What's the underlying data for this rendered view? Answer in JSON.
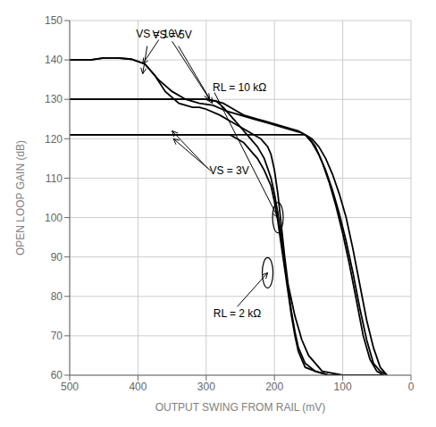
{
  "chart_data": {
    "type": "line",
    "xlabel": "OUTPUT SWING FROM RAIL (mV)",
    "ylabel": "OPEN LOOP GAIN (dB)",
    "xlim": [
      500,
      0
    ],
    "ylim": [
      60,
      150
    ],
    "xticks": [
      500,
      400,
      300,
      200,
      100,
      0
    ],
    "yticks": [
      60,
      70,
      80,
      90,
      100,
      110,
      120,
      130,
      140,
      150
    ],
    "grid": true,
    "color": "#000000",
    "series": [
      {
        "x": [
          500,
          470,
          450,
          430,
          410,
          390,
          370,
          350,
          330,
          310,
          290,
          270,
          250,
          230,
          210,
          190,
          170,
          160,
          155,
          150,
          140,
          130,
          120,
          110,
          100,
          90,
          80,
          70,
          60,
          50,
          40
        ],
        "values": [
          140,
          140,
          140.5,
          140.5,
          140.2,
          139,
          135,
          132,
          130,
          129,
          128.5,
          127,
          126,
          125,
          124,
          123,
          122,
          121.5,
          121,
          120.5,
          118,
          114,
          109,
          103,
          96,
          88,
          79,
          70,
          64,
          61,
          60
        ]
      },
      {
        "x": [
          500,
          470,
          450,
          430,
          410,
          390,
          375,
          360,
          340,
          320,
          310,
          300,
          280,
          260,
          240,
          230,
          220,
          210,
          205,
          200,
          195,
          190,
          185,
          180,
          170,
          160,
          150,
          130,
          100,
          70,
          40
        ],
        "values": [
          140,
          140,
          140.5,
          140.5,
          140.2,
          139,
          136,
          132,
          129,
          128,
          128,
          127.5,
          126,
          124,
          122,
          121,
          120,
          118,
          116,
          112,
          106,
          98,
          90,
          83,
          75,
          69,
          65,
          61,
          60,
          60,
          60
        ]
      },
      {
        "x": [
          500,
          480,
          460,
          440,
          420,
          400,
          380,
          360,
          340,
          320,
          300,
          285,
          275,
          265,
          255,
          245,
          235,
          225,
          215,
          205,
          195,
          185,
          175,
          165,
          155,
          145,
          135,
          125,
          115,
          105,
          95,
          85,
          75,
          65,
          55,
          45,
          35
        ],
        "values": [
          130,
          130,
          130,
          130,
          130,
          130,
          130,
          130,
          130,
          130,
          130,
          129.5,
          129,
          128,
          127,
          126,
          125.5,
          125,
          124.5,
          124,
          123.5,
          123,
          122.5,
          122,
          121,
          119,
          116,
          112,
          107,
          101,
          94,
          86,
          77,
          69,
          63,
          61,
          60
        ]
      },
      {
        "x": [
          500,
          480,
          460,
          440,
          420,
          400,
          380,
          360,
          340,
          320,
          300,
          285,
          275,
          265,
          255,
          245,
          235,
          225,
          215,
          205,
          200,
          195,
          190,
          185,
          180,
          175,
          170,
          165,
          155,
          140,
          120,
          90,
          60
        ],
        "values": [
          130,
          130,
          130,
          130,
          130,
          130,
          130,
          130,
          130,
          130,
          130,
          129.5,
          128,
          126,
          124,
          122,
          120,
          118,
          115,
          110,
          106,
          101,
          95,
          88,
          82,
          76,
          71,
          67,
          63,
          61,
          60,
          60,
          60
        ]
      },
      {
        "x": [
          500,
          480,
          460,
          440,
          420,
          400,
          380,
          360,
          340,
          320,
          300,
          280,
          265,
          255,
          245,
          235,
          225,
          215,
          205,
          195,
          185,
          175,
          165,
          155,
          145,
          135,
          125,
          115,
          105,
          95,
          85,
          75,
          65,
          55,
          45,
          35
        ],
        "values": [
          121,
          121,
          121,
          121,
          121,
          121,
          121,
          121,
          121,
          121,
          121,
          121,
          121,
          121,
          121,
          121,
          121,
          121,
          121,
          121,
          121,
          121,
          121,
          121,
          120,
          118,
          115,
          111,
          106,
          100,
          92,
          83,
          74,
          67,
          62,
          60
        ]
      },
      {
        "x": [
          500,
          480,
          460,
          440,
          420,
          400,
          380,
          360,
          340,
          320,
          300,
          280,
          265,
          255,
          245,
          235,
          225,
          215,
          205,
          200,
          195,
          190,
          185,
          180,
          175,
          170,
          165,
          155,
          140,
          120,
          90,
          60
        ],
        "values": [
          121,
          121,
          121,
          121,
          121,
          121,
          121,
          121,
          121,
          121,
          121,
          121,
          121,
          120,
          119,
          117,
          115,
          112,
          108,
          104,
          99,
          93,
          87,
          81,
          75,
          70,
          66,
          62,
          61,
          60,
          60,
          60
        ]
      }
    ],
    "annotations": [
      {
        "text": "VS = 10V",
        "points": [
          [
            393,
            139
          ],
          [
            393,
            136.5
          ]
        ]
      },
      {
        "text": "VS = 5V",
        "points": [
          [
            295,
            130
          ],
          [
            291,
            129
          ]
        ]
      },
      {
        "text": "VS = 3V",
        "points": [
          [
            350,
            122
          ],
          [
            348,
            120
          ]
        ]
      },
      {
        "text": "RL = 10 kΩ",
        "points": [
          [
            195,
            100
          ]
        ],
        "marker": "circle"
      },
      {
        "text": "RL = 2 kΩ",
        "points": [
          [
            210,
            86
          ]
        ],
        "marker": "circle"
      }
    ]
  }
}
